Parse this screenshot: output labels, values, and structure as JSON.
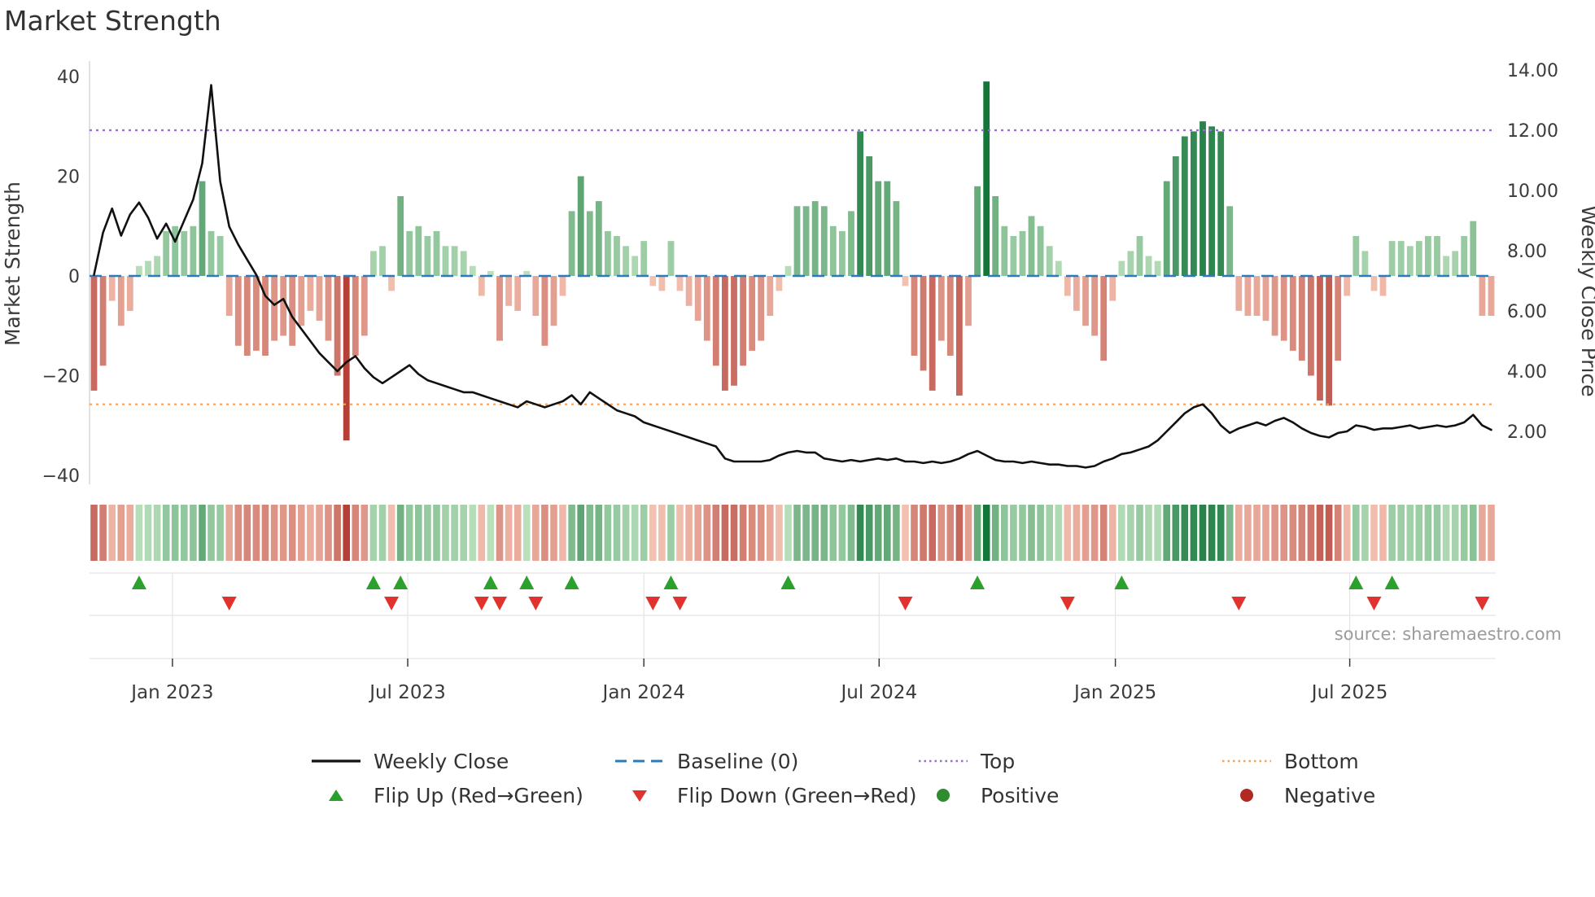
{
  "title": "Market Strength",
  "source": "source: sharemaestro.com",
  "colors": {
    "line": "#111111",
    "baseline": "#2b7bba",
    "top": "#9371c8",
    "bottom": "#f2a25d",
    "flip_up": "#2ca02c",
    "flip_down": "#e0332e",
    "positive_dot": "#2e8b2e",
    "negative_dot": "#b02a22",
    "bar_pos_light": "#bfe3bf",
    "bar_pos_dark": "#15763a",
    "bar_neg_light": "#f7c9b8",
    "bar_neg_dark": "#b03830",
    "grid": "#d9d9d9",
    "axis_text": "#3b3b3b"
  },
  "legend": {
    "items": [
      {
        "label": "Weekly Close",
        "swatch": "line-solid-black"
      },
      {
        "label": "Baseline (0)",
        "swatch": "line-dashed-blue"
      },
      {
        "label": "Top",
        "swatch": "line-dotted-purple"
      },
      {
        "label": "Bottom",
        "swatch": "line-dotted-orange"
      },
      {
        "label": "Flip Up (Red→Green)",
        "swatch": "triangle-up-green"
      },
      {
        "label": "Flip Down (Green→Red)",
        "swatch": "triangle-down-red"
      },
      {
        "label": "Positive",
        "swatch": "circle-green"
      },
      {
        "label": "Negative",
        "swatch": "circle-darkred"
      }
    ]
  },
  "chart_data": {
    "type": "bar+line combo with heatmap strip and flip markers",
    "title": "Market Strength",
    "left_axis": {
      "title": "Market Strength",
      "ticks": [
        "40",
        "20",
        "0",
        "−20",
        "−40"
      ],
      "tick_values": [
        40,
        20,
        0,
        -20,
        -40
      ],
      "range": [
        -47,
        43
      ]
    },
    "right_axis": {
      "title": "Weekly Close Price",
      "ticks": [
        "14.00",
        "12.00",
        "10.00",
        "8.00",
        "6.00",
        "4.00",
        "2.00"
      ],
      "tick_values": [
        14,
        12,
        10,
        8,
        6,
        4,
        2
      ],
      "range": [
        0.5,
        14.2
      ]
    },
    "x_ticks": [
      {
        "label": "Jan 2023",
        "index": 8.7
      },
      {
        "label": "Jul 2023",
        "index": 34.8
      },
      {
        "label": "Jan 2024",
        "index": 61.0
      },
      {
        "label": "Jul 2024",
        "index": 87.1
      },
      {
        "label": "Jan 2025",
        "index": 113.3
      },
      {
        "label": "Jul 2025",
        "index": 139.3
      }
    ],
    "baseline_value": 0,
    "top_value": 12.0,
    "bottom_value": 2.9,
    "bars": {
      "name": "Market Strength (weekly)",
      "values": [
        -23,
        -18,
        -5,
        -10,
        -7,
        2,
        3,
        4,
        9,
        10,
        9,
        10,
        19,
        9,
        8,
        -8,
        -14,
        -16,
        -15,
        -16,
        -13,
        -12,
        -14,
        -10,
        -7,
        -9,
        -13,
        -20,
        -33,
        -16,
        -12,
        5,
        6,
        -3,
        16,
        9,
        10,
        8,
        9,
        6,
        6,
        5,
        2,
        -4,
        1,
        -13,
        -6,
        -7,
        1,
        -8,
        -14,
        -10,
        -4,
        13,
        20,
        13,
        15,
        9,
        8,
        6,
        4,
        7,
        -2,
        -3,
        7,
        -3,
        -6,
        -9,
        -13,
        -18,
        -23,
        -22,
        -18,
        -15,
        -13,
        -8,
        -3,
        2,
        14,
        14,
        15,
        14,
        10,
        9,
        13,
        29,
        24,
        19,
        19,
        15,
        -2,
        -16,
        -19,
        -23,
        -13,
        -16,
        -24,
        -10,
        18,
        39,
        16,
        10,
        8,
        9,
        12,
        10,
        6,
        3,
        -4,
        -7,
        -10,
        -12,
        -17,
        -5,
        3,
        5,
        8,
        4,
        3,
        19,
        24,
        28,
        29,
        31,
        30,
        29,
        14,
        -7,
        -8,
        -8,
        -9,
        -12,
        -13,
        -15,
        -17,
        -20,
        -25,
        -26,
        -17,
        -4,
        8,
        5,
        -3,
        -4,
        7,
        7,
        6,
        7,
        8,
        8,
        4,
        5,
        8,
        11,
        -8,
        -8
      ]
    },
    "line": {
      "name": "Weekly Close",
      "values": [
        7.2,
        8.6,
        9.4,
        8.5,
        9.2,
        9.6,
        9.1,
        8.4,
        8.9,
        8.3,
        9.0,
        9.7,
        10.9,
        13.5,
        10.3,
        8.8,
        8.2,
        7.7,
        7.2,
        6.5,
        6.2,
        6.4,
        5.8,
        5.4,
        5.0,
        4.6,
        4.3,
        4.0,
        4.3,
        4.5,
        4.1,
        3.8,
        3.6,
        3.8,
        4.0,
        4.2,
        3.9,
        3.7,
        3.6,
        3.5,
        3.4,
        3.3,
        3.3,
        3.2,
        3.1,
        3.0,
        2.9,
        2.8,
        3.0,
        2.9,
        2.8,
        2.9,
        3.0,
        3.2,
        2.9,
        3.3,
        3.1,
        2.9,
        2.7,
        2.6,
        2.5,
        2.3,
        2.2,
        2.1,
        2.0,
        1.9,
        1.8,
        1.7,
        1.6,
        1.5,
        1.1,
        1.0,
        1.0,
        1.0,
        1.0,
        1.05,
        1.2,
        1.3,
        1.35,
        1.3,
        1.3,
        1.1,
        1.05,
        1.0,
        1.05,
        1.0,
        1.05,
        1.1,
        1.05,
        1.1,
        1.0,
        1.0,
        0.95,
        1.0,
        0.95,
        1.0,
        1.1,
        1.25,
        1.35,
        1.2,
        1.05,
        1.0,
        1.0,
        0.95,
        1.0,
        0.95,
        0.9,
        0.9,
        0.85,
        0.85,
        0.8,
        0.85,
        1.0,
        1.1,
        1.25,
        1.3,
        1.4,
        1.5,
        1.7,
        2.0,
        2.3,
        2.6,
        2.8,
        2.9,
        2.6,
        2.2,
        1.95,
        2.1,
        2.2,
        2.3,
        2.2,
        2.35,
        2.45,
        2.3,
        2.1,
        1.95,
        1.85,
        1.8,
        1.95,
        2.0,
        2.2,
        2.15,
        2.05,
        2.1,
        2.1,
        2.15,
        2.2,
        2.1,
        2.15,
        2.2,
        2.15,
        2.2,
        2.3,
        2.55,
        2.2,
        2.05
      ]
    },
    "flip_up_indices": [
      5,
      31,
      34,
      44,
      48,
      53,
      64,
      77,
      98,
      114,
      140,
      144
    ],
    "flip_down_indices": [
      15,
      33,
      43,
      45,
      49,
      62,
      65,
      90,
      108,
      127,
      142,
      154
    ],
    "heatmap": "cells colored from bars.values (green positive / red negative, intensity by magnitude)",
    "layout_hints": {
      "grid": "off in main plot",
      "legend_position": "bottom, 4 columns x 2 rows"
    }
  }
}
